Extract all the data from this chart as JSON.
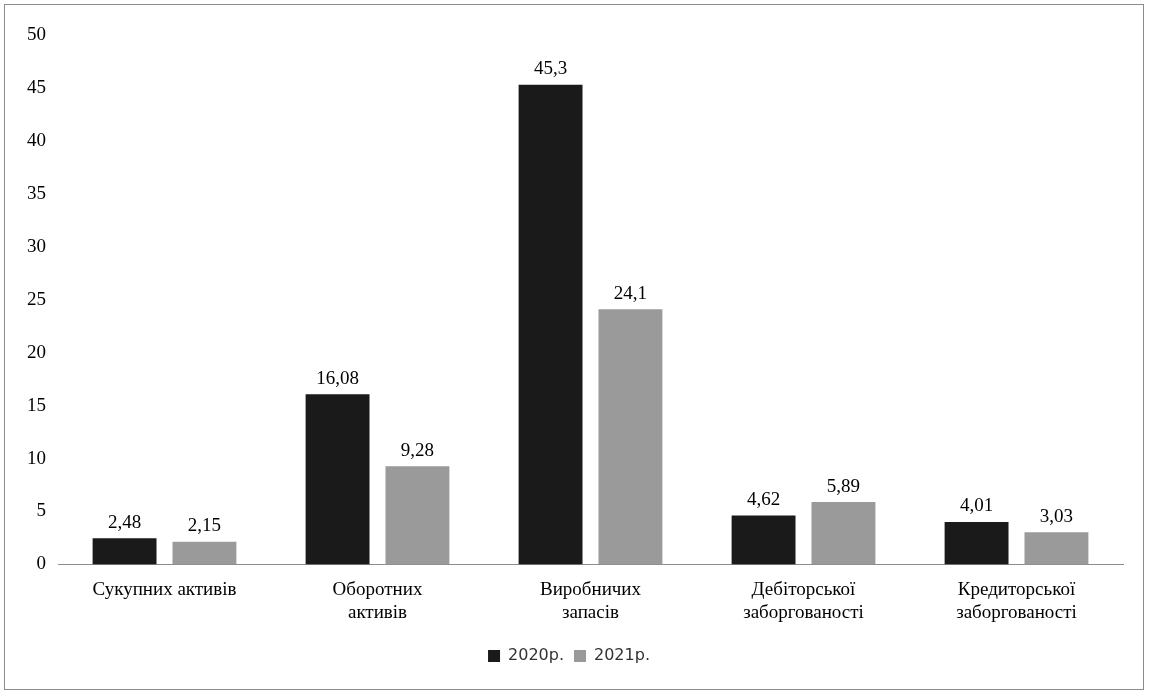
{
  "chart_data": {
    "type": "bar",
    "categories": [
      "Сукупних активів",
      "Оборотних активів",
      "Виробничих запасів",
      "Дебіторської заборгованості",
      "Кредиторської заборгованості"
    ],
    "series": [
      {
        "name": "2020р.",
        "color": "#1a1a1a",
        "values": [
          2.48,
          16.08,
          45.3,
          4.62,
          4.01
        ],
        "value_labels": [
          "2,48",
          "16,08",
          "45,3",
          "4,62",
          "4,01"
        ]
      },
      {
        "name": "2021р.",
        "color": "#9a9a9a",
        "values": [
          2.15,
          9.28,
          24.1,
          5.89,
          3.03
        ],
        "value_labels": [
          "2,15",
          "9,28",
          "24,1",
          "5,89",
          "3,03"
        ]
      }
    ],
    "ylim": [
      0,
      50
    ],
    "yticks": [
      0,
      5,
      10,
      15,
      20,
      25,
      30,
      35,
      40,
      45,
      50
    ],
    "grid": false,
    "legend": "bottom"
  }
}
